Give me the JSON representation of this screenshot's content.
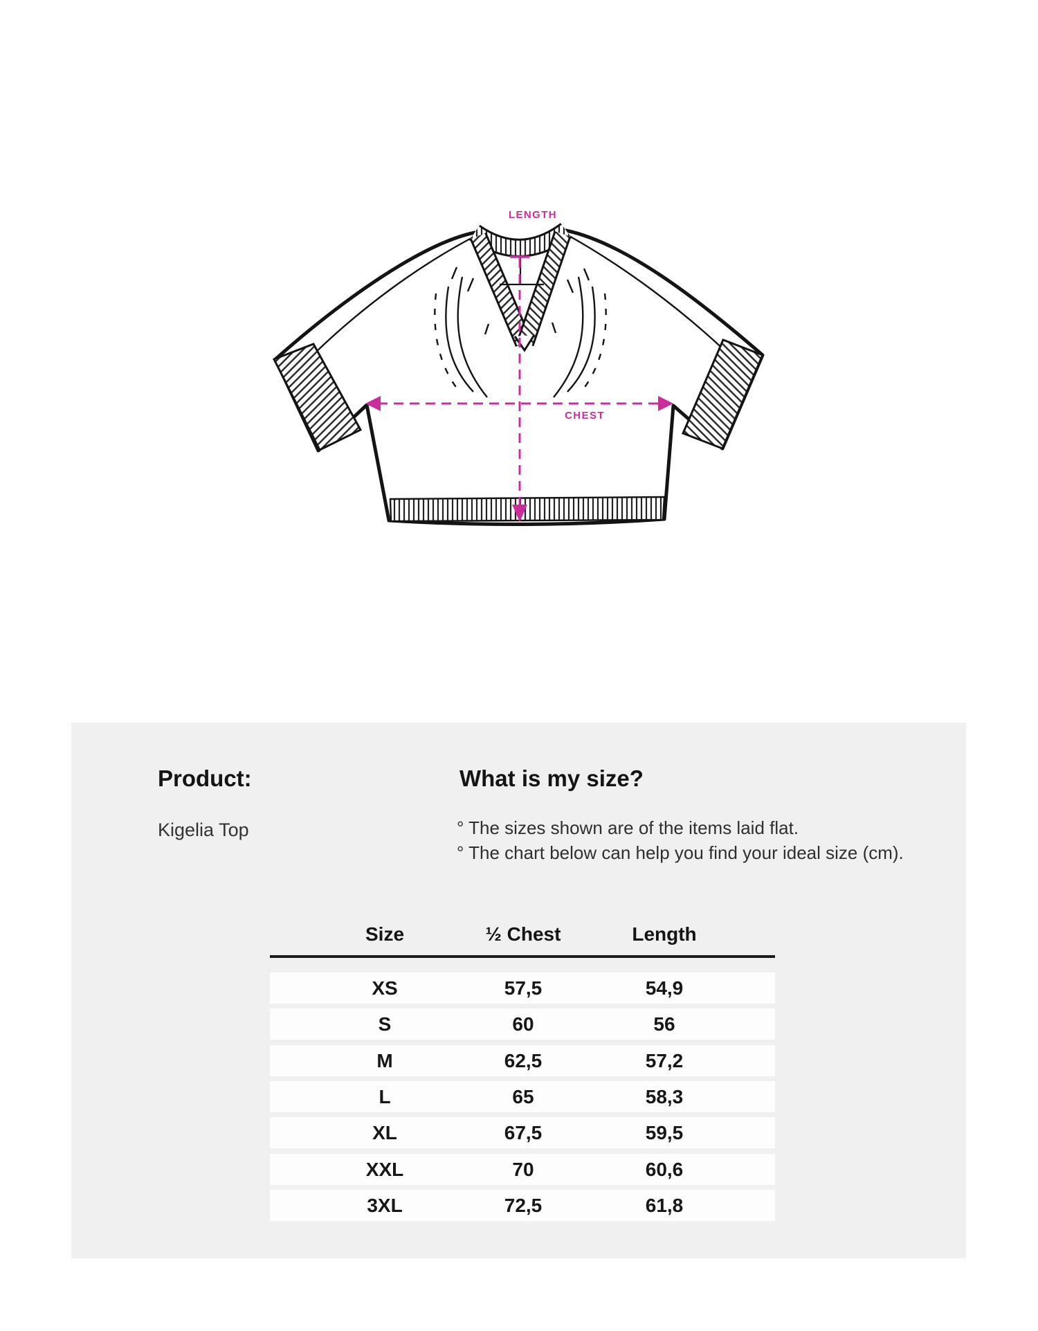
{
  "diagram": {
    "length_label": "LENGTH",
    "chest_label": "CHEST",
    "accent_color": "#cc2b9c"
  },
  "panel": {
    "background": "#eff0ef",
    "product_heading": "Product:",
    "product_name": "Kigelia Top",
    "size_heading": "What is my size?",
    "notes": [
      "° The sizes shown are of the items laid flat.",
      "° The chart below can help you find your ideal size (cm)."
    ]
  },
  "size_table": {
    "columns": [
      "Size",
      "½ Chest",
      "Length"
    ],
    "rows": [
      {
        "size": "XS",
        "half_chest": "57,5",
        "length": "54,9"
      },
      {
        "size": "S",
        "half_chest": "60",
        "length": "56"
      },
      {
        "size": "M",
        "half_chest": "62,5",
        "length": "57,2"
      },
      {
        "size": "L",
        "half_chest": "65",
        "length": "58,3"
      },
      {
        "size": "XL",
        "half_chest": "67,5",
        "length": "59,5"
      },
      {
        "size": "XXL",
        "half_chest": "70",
        "length": "60,6"
      },
      {
        "size": "3XL",
        "half_chest": "72,5",
        "length": "61,8"
      }
    ]
  }
}
